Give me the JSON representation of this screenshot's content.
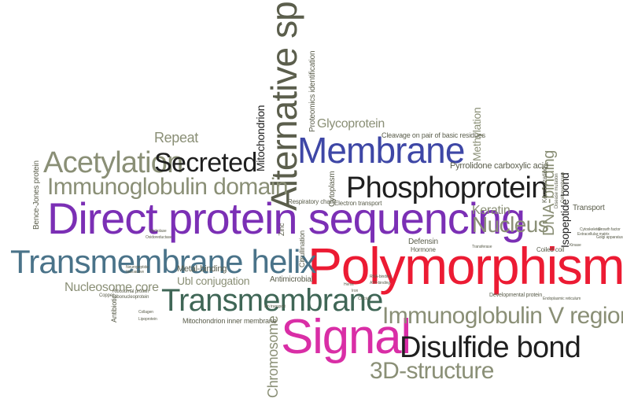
{
  "colors": {
    "olive": "#8a8f76",
    "dark": "#1f1f1f",
    "purple": "#7b2fb5",
    "blue": "#3e47a6",
    "teal": "#4a7389",
    "red": "#ec1b33",
    "magenta": "#d92ea6",
    "darkgreen": "#3f6656",
    "mid": "#5b5e4c"
  },
  "words": {
    "polymorphism": "Polymorphism",
    "direct_protein_sequencing": "Direct protein sequencing",
    "transmembrane_helix": "Transmembrane helix",
    "membrane": "Membrane",
    "signal": "Signal",
    "alternative_splicing": "Alternative splicing",
    "phosphoprotein": "Phosphoprotein",
    "transmembrane": "Transmembrane",
    "disulfide_bond": "Disulfide bond",
    "acetylation": "Acetylation",
    "secreted": "Secreted",
    "immunoglobulin_domain": "Immunoglobulin domain",
    "immunoglobulin_v_region": "Immunoglobulin V region",
    "three_d_structure": "3D-structure",
    "nucleus": "Nucleus",
    "glycoprotein": "Glycoprotein",
    "repeat": "Repeat",
    "nucleosome_core": "Nucleosome core",
    "ubl_conjugation": "Ubl conjugation",
    "keratin": "Keratin",
    "chromosome": "Chromosome",
    "mitochondrion": "Mitochondrion",
    "dna_binding": "DNA-binding",
    "isopeptide_bond": "Isopeptide bond",
    "methylation": "Methylation",
    "pyrrolidone_carboxylic_acid": "Pyrrolidone carboxylic acid",
    "cleavage": "Cleavage on pair of basic residues",
    "proteomics_identification": "Proteomics identification",
    "metal_binding": "Metal-binding",
    "mitochondrion_inner_membrane": "Mitochondrion inner membrane",
    "antimicrobial": "Antimicrobial",
    "cytoplasm": "Cytoplasm",
    "zinc": "Zinc",
    "bence_jones_protein": "Bence-Jones protein",
    "antibiotic": "Antibiotic",
    "transport": "Transport",
    "defensin": "Defensin",
    "citrullination": "Citrullination",
    "respiratory_chain": "Respiratory chain",
    "electron_transport": "Electron transport",
    "keratinization": "Keratinization",
    "coiled_coil": "Coiled coil",
    "hormone": "Hormone",
    "developmental_protein": "Developmental protein",
    "copper": "Copper",
    "ribosomal_protein": "Ribosomal protein",
    "ribonucleoprotein": "Ribonucleoprotein",
    "neuropeptide": "Neuropeptide",
    "vasoactive": "Vasoactive",
    "growth_factor": "Growth factor",
    "disease_mutation": "Disease mutation",
    "cell_membrane": "Cell membrane",
    "cytoskeleton": "Cytoskeleton",
    "extracellular_matrix": "Extracellular matrix",
    "lipoprotein": "Lipoprotein",
    "collagen": "Collagen",
    "heme": "Heme",
    "iron": "Iron",
    "calcium": "Calcium",
    "ion_transport": "Ion transport",
    "endoplasmic_reticulum": "Endoplasmic reticulum",
    "golgi_apparatus": "Golgi apparatus",
    "oxidoreductase": "Oxidoreductase",
    "hydrolase": "Hydrolase",
    "transferase": "Transferase",
    "kinase": "Kinase",
    "rna_binding": "RNA-binding",
    "atp_binding": "ATP-binding"
  }
}
